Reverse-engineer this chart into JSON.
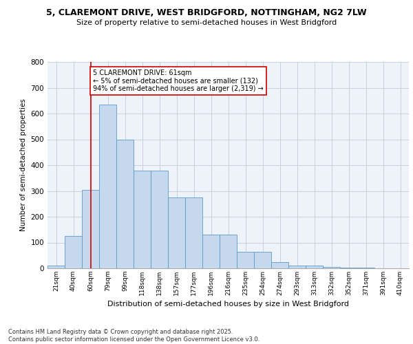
{
  "title_line1": "5, CLAREMONT DRIVE, WEST BRIDGFORD, NOTTINGHAM, NG2 7LW",
  "title_line2": "Size of property relative to semi-detached houses in West Bridgford",
  "xlabel": "Distribution of semi-detached houses by size in West Bridgford",
  "ylabel": "Number of semi-detached properties",
  "footnote": "Contains HM Land Registry data © Crown copyright and database right 2025.\nContains public sector information licensed under the Open Government Licence v3.0.",
  "categories": [
    "21sqm",
    "40sqm",
    "60sqm",
    "79sqm",
    "99sqm",
    "118sqm",
    "138sqm",
    "157sqm",
    "177sqm",
    "196sqm",
    "216sqm",
    "235sqm",
    "254sqm",
    "274sqm",
    "293sqm",
    "313sqm",
    "332sqm",
    "352sqm",
    "371sqm",
    "391sqm",
    "410sqm"
  ],
  "values": [
    10,
    125,
    305,
    635,
    500,
    380,
    380,
    275,
    275,
    130,
    130,
    65,
    65,
    25,
    10,
    10,
    5,
    3,
    2,
    1,
    0
  ],
  "bar_color": "#c5d8ed",
  "bar_edge_color": "#5a9bc9",
  "grid_color": "#c8d0e0",
  "background_color": "#eef2f9",
  "property_line_x": 2,
  "property_line_label": "5 CLAREMONT DRIVE: 61sqm",
  "annotation_smaller": "← 5% of semi-detached houses are smaller (132)",
  "annotation_larger": "94% of semi-detached houses are larger (2,319) →",
  "annotation_box_color": "#ffffff",
  "annotation_box_edge": "#cc0000",
  "vline_color": "#cc0000",
  "ylim": [
    0,
    800
  ],
  "yticks": [
    0,
    100,
    200,
    300,
    400,
    500,
    600,
    700,
    800
  ]
}
